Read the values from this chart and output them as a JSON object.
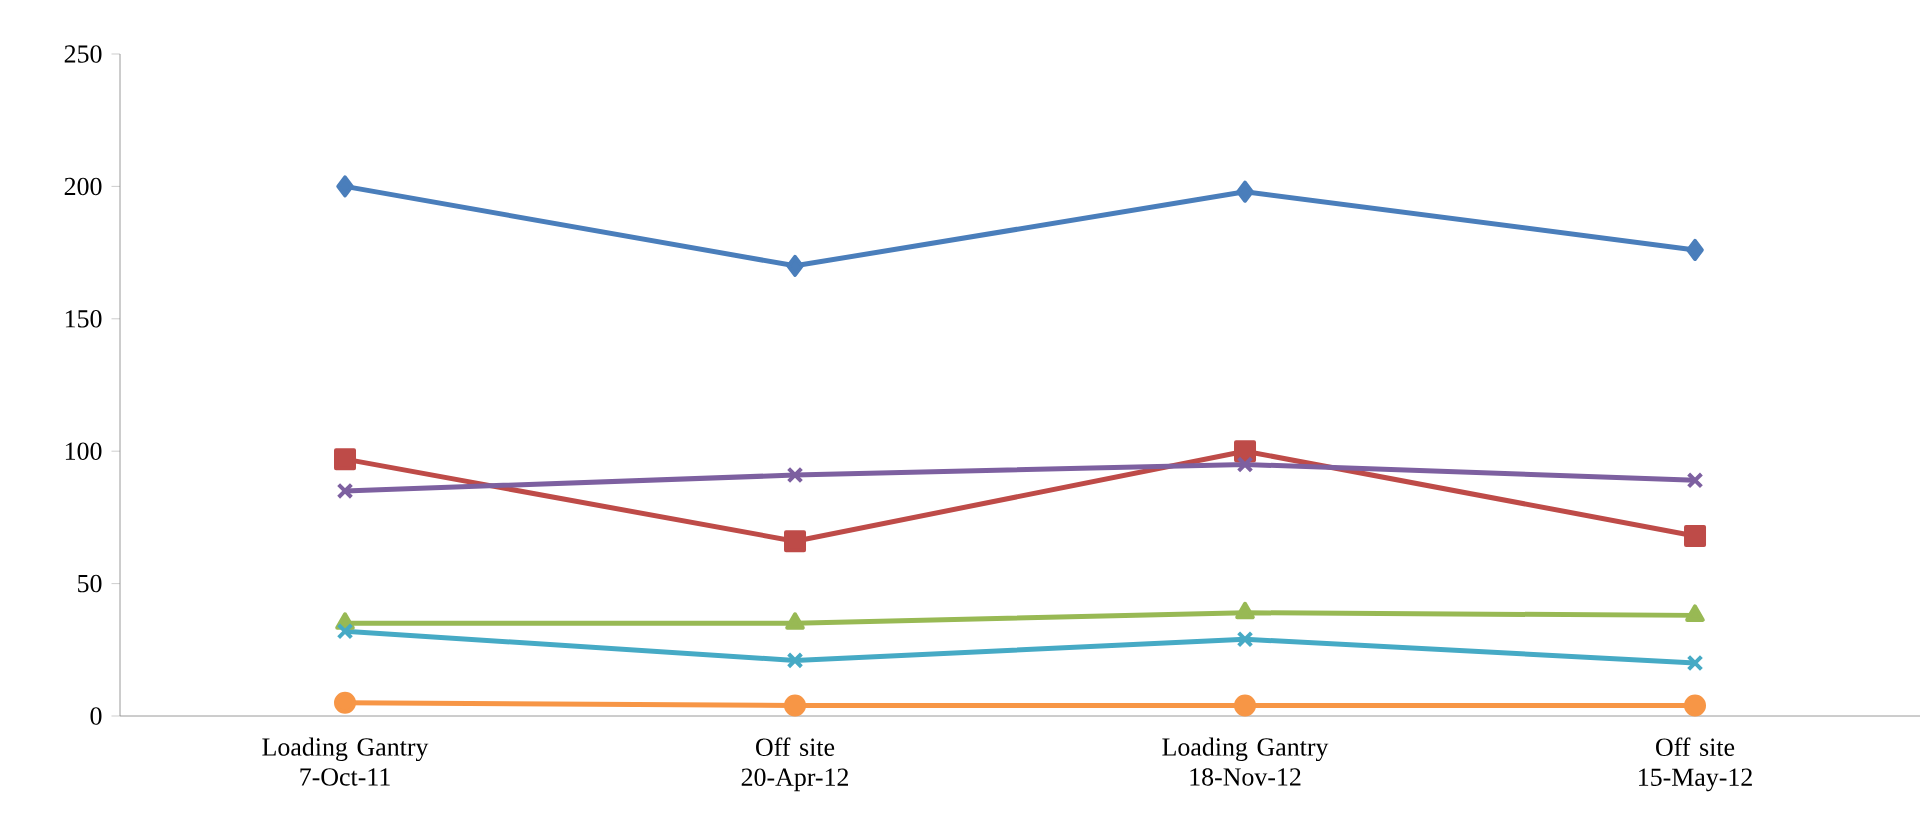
{
  "chart_data": {
    "type": "line",
    "categories": [
      "Loading Gantry 7-Oct-11",
      "Off site 20-Apr-12",
      "Loading Gantry 18-Nov-12",
      "Off site 15-May-12"
    ],
    "series": [
      {
        "color": "#4a7ebb",
        "marker": "diamond",
        "values": [
          200,
          170,
          198,
          176
        ]
      },
      {
        "color": "#be4b48",
        "marker": "square",
        "values": [
          97,
          66,
          100,
          68
        ]
      },
      {
        "color": "#7d60a0",
        "marker": "cross",
        "values": [
          85,
          91,
          95,
          89
        ]
      },
      {
        "color": "#98b954",
        "marker": "triangle",
        "values": [
          35,
          35,
          39,
          38
        ]
      },
      {
        "color": "#46aac5",
        "marker": "cross",
        "values": [
          32,
          21,
          29,
          20
        ]
      },
      {
        "color": "#f79646",
        "marker": "circle",
        "values": [
          5,
          4,
          4,
          4
        ]
      }
    ],
    "ylim": [
      0,
      250
    ],
    "yticks": [
      0,
      50,
      100,
      150,
      200,
      250
    ],
    "grid": false,
    "line_style": "solid"
  }
}
